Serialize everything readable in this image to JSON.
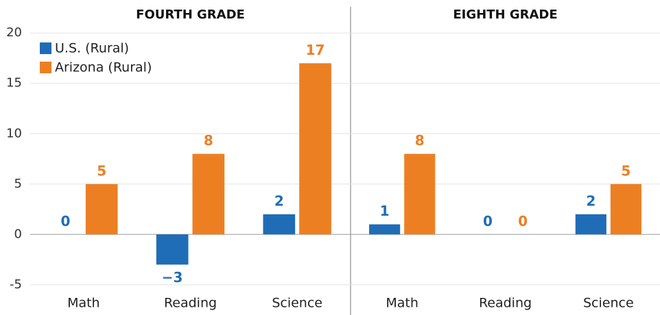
{
  "chart_data": {
    "type": "bar",
    "ylim": [
      -6.1,
      22.6
    ],
    "yticks": [
      -5,
      0,
      5,
      10,
      15,
      20
    ],
    "grid": true,
    "legend": "upper left",
    "series": [
      {
        "name": "U.S. (Rural)",
        "color": "#1f6db6"
      },
      {
        "name": "Arizona (Rural)",
        "color": "#ed7f23"
      }
    ],
    "panels": [
      {
        "title": "FOURTH GRADE",
        "categories": [
          "Math",
          "Reading",
          "Science"
        ],
        "series": [
          {
            "values": [
              0,
              -3,
              2
            ],
            "value_labels": [
              "0",
              "−3",
              "2"
            ]
          },
          {
            "values": [
              5,
              8,
              17
            ]
          }
        ]
      },
      {
        "title": "EIGHTH GRADE",
        "categories": [
          "Math",
          "Reading",
          "Science"
        ],
        "series": [
          {
            "values": [
              1,
              0,
              2
            ]
          },
          {
            "values": [
              8,
              0,
              5
            ]
          }
        ]
      }
    ]
  }
}
